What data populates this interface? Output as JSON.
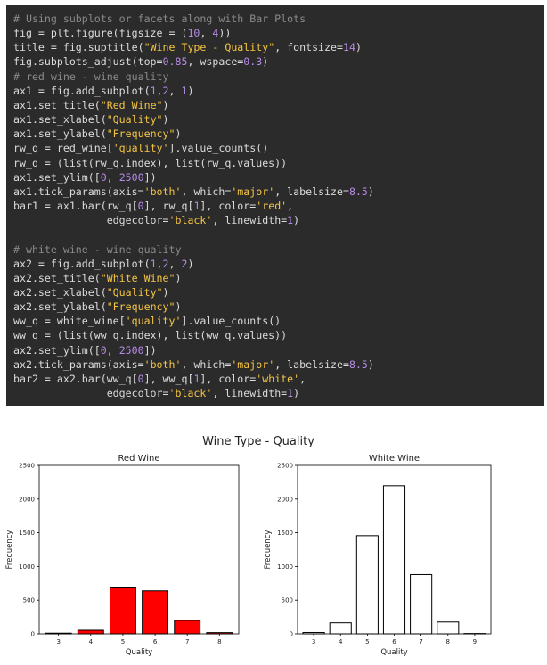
{
  "code": {
    "lines": [
      [
        {
          "t": "# Using subplots or facets along with Bar Plots",
          "c": "cm"
        }
      ],
      [
        {
          "t": "fig = plt.figure(figsize = ("
        },
        {
          "t": "10",
          "c": "num"
        },
        {
          "t": ", "
        },
        {
          "t": "4",
          "c": "num"
        },
        {
          "t": "))"
        }
      ],
      [
        {
          "t": "title = fig.suptitle("
        },
        {
          "t": "\"Wine Type - Quality\"",
          "c": "str"
        },
        {
          "t": ", fontsize="
        },
        {
          "t": "14",
          "c": "num"
        },
        {
          "t": ")"
        }
      ],
      [
        {
          "t": "fig.subplots_adjust(top="
        },
        {
          "t": "0.85",
          "c": "num"
        },
        {
          "t": ", wspace="
        },
        {
          "t": "0.3",
          "c": "num"
        },
        {
          "t": ")"
        }
      ],
      [
        {
          "t": "# red wine - wine quality",
          "c": "cm"
        }
      ],
      [
        {
          "t": "ax1 = fig.add_subplot("
        },
        {
          "t": "1",
          "c": "num"
        },
        {
          "t": ","
        },
        {
          "t": "2",
          "c": "num"
        },
        {
          "t": ", "
        },
        {
          "t": "1",
          "c": "num"
        },
        {
          "t": ")"
        }
      ],
      [
        {
          "t": "ax1.set_title("
        },
        {
          "t": "\"Red Wine\"",
          "c": "str"
        },
        {
          "t": ")"
        }
      ],
      [
        {
          "t": "ax1.set_xlabel("
        },
        {
          "t": "\"Quality\"",
          "c": "str"
        },
        {
          "t": ")"
        }
      ],
      [
        {
          "t": "ax1.set_ylabel("
        },
        {
          "t": "\"Frequency\"",
          "c": "str"
        },
        {
          "t": ")"
        }
      ],
      [
        {
          "t": "rw_q = red_wine["
        },
        {
          "t": "'quality'",
          "c": "str"
        },
        {
          "t": "].value_counts()"
        }
      ],
      [
        {
          "t": "rw_q = (list(rw_q.index), list(rw_q.values))"
        }
      ],
      [
        {
          "t": "ax1.set_ylim(["
        },
        {
          "t": "0",
          "c": "num"
        },
        {
          "t": ", "
        },
        {
          "t": "2500",
          "c": "num"
        },
        {
          "t": "])"
        }
      ],
      [
        {
          "t": "ax1.tick_params(axis="
        },
        {
          "t": "'both'",
          "c": "str"
        },
        {
          "t": ", which="
        },
        {
          "t": "'major'",
          "c": "str"
        },
        {
          "t": ", labelsize="
        },
        {
          "t": "8.5",
          "c": "num"
        },
        {
          "t": ")"
        }
      ],
      [
        {
          "t": "bar1 = ax1.bar(rw_q["
        },
        {
          "t": "0",
          "c": "num"
        },
        {
          "t": "], rw_q["
        },
        {
          "t": "1",
          "c": "num"
        },
        {
          "t": "], color="
        },
        {
          "t": "'red'",
          "c": "str"
        },
        {
          "t": ","
        }
      ],
      [
        {
          "t": "               edgecolor="
        },
        {
          "t": "'black'",
          "c": "str"
        },
        {
          "t": ", linewidth="
        },
        {
          "t": "1",
          "c": "num"
        },
        {
          "t": ")"
        }
      ],
      [
        {
          "t": ""
        }
      ],
      [
        {
          "t": "# white wine - wine quality",
          "c": "cm"
        }
      ],
      [
        {
          "t": "ax2 = fig.add_subplot("
        },
        {
          "t": "1",
          "c": "num"
        },
        {
          "t": ","
        },
        {
          "t": "2",
          "c": "num"
        },
        {
          "t": ", "
        },
        {
          "t": "2",
          "c": "num"
        },
        {
          "t": ")"
        }
      ],
      [
        {
          "t": "ax2.set_title("
        },
        {
          "t": "\"White Wine\"",
          "c": "str"
        },
        {
          "t": ")"
        }
      ],
      [
        {
          "t": "ax2.set_xlabel("
        },
        {
          "t": "\"Quality\"",
          "c": "str"
        },
        {
          "t": ")"
        }
      ],
      [
        {
          "t": "ax2.set_ylabel("
        },
        {
          "t": "\"Frequency\"",
          "c": "str"
        },
        {
          "t": ")"
        }
      ],
      [
        {
          "t": "ww_q = white_wine["
        },
        {
          "t": "'quality'",
          "c": "str"
        },
        {
          "t": "].value_counts()"
        }
      ],
      [
        {
          "t": "ww_q = (list(ww_q.index), list(ww_q.values))"
        }
      ],
      [
        {
          "t": "ax2.set_ylim(["
        },
        {
          "t": "0",
          "c": "num"
        },
        {
          "t": ", "
        },
        {
          "t": "2500",
          "c": "num"
        },
        {
          "t": "])"
        }
      ],
      [
        {
          "t": "ax2.tick_params(axis="
        },
        {
          "t": "'both'",
          "c": "str"
        },
        {
          "t": ", which="
        },
        {
          "t": "'major'",
          "c": "str"
        },
        {
          "t": ", labelsize="
        },
        {
          "t": "8.5",
          "c": "num"
        },
        {
          "t": ")"
        }
      ],
      [
        {
          "t": "bar2 = ax2.bar(ww_q["
        },
        {
          "t": "0",
          "c": "num"
        },
        {
          "t": "], ww_q["
        },
        {
          "t": "1",
          "c": "num"
        },
        {
          "t": "], color="
        },
        {
          "t": "'white'",
          "c": "str"
        },
        {
          "t": ","
        }
      ],
      [
        {
          "t": "               edgecolor="
        },
        {
          "t": "'black'",
          "c": "str"
        },
        {
          "t": ", linewidth="
        },
        {
          "t": "1",
          "c": "num"
        },
        {
          "t": ")"
        }
      ]
    ]
  },
  "chart_data": [
    {
      "type": "bar",
      "suptitle": "Wine Type - Quality",
      "title": "Red Wine",
      "xlabel": "Quality",
      "ylabel": "Frequency",
      "ylim": [
        0,
        2500
      ],
      "yticks": [
        0,
        500,
        1000,
        1500,
        2000,
        2500
      ],
      "categories": [
        "3",
        "4",
        "5",
        "6",
        "7",
        "8"
      ],
      "values": [
        10,
        53,
        681,
        638,
        199,
        18
      ],
      "bar_color": "#ff0000",
      "edge_color": "#000000",
      "grid": false
    },
    {
      "type": "bar",
      "title": "White Wine",
      "xlabel": "Quality",
      "ylabel": "Frequency",
      "ylim": [
        0,
        2500
      ],
      "yticks": [
        0,
        500,
        1000,
        1500,
        2000,
        2500
      ],
      "categories": [
        "3",
        "4",
        "5",
        "6",
        "7",
        "8",
        "9"
      ],
      "values": [
        20,
        163,
        1457,
        2198,
        880,
        175,
        5
      ],
      "bar_color": "#ffffff",
      "edge_color": "#000000",
      "grid": false
    }
  ]
}
